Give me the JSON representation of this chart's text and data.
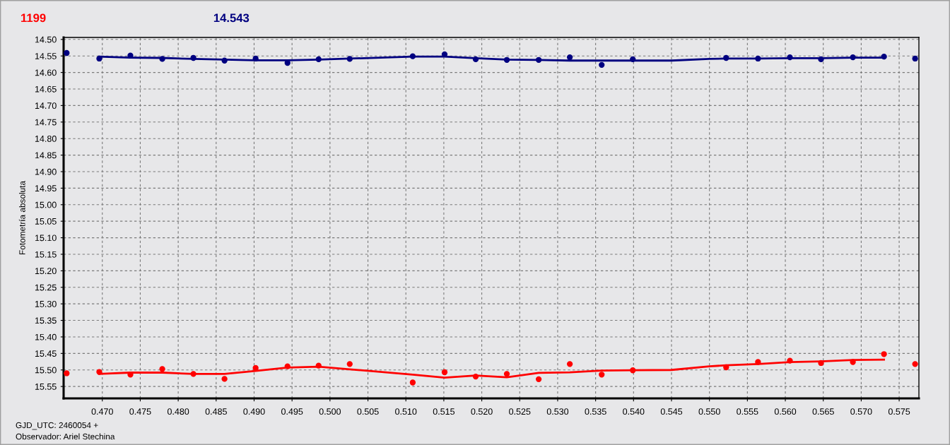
{
  "chart_data": {
    "type": "scatter",
    "xlabel": "GJD_UTC: 2460054 +",
    "ylabel": "Fotometría absoluta",
    "annotations": [
      "Observador: Ariel Stechina"
    ],
    "x": [
      0.4653,
      0.4696,
      0.4737,
      0.4779,
      0.482,
      0.4861,
      0.4902,
      0.4944,
      0.4985,
      0.5026,
      0.5109,
      0.5151,
      0.5192,
      0.5233,
      0.5275,
      0.5316,
      0.5358,
      0.5399,
      0.5522,
      0.5564,
      0.5606,
      0.5647,
      0.5689,
      0.573,
      0.5771
    ],
    "series": [
      {
        "name": "1199",
        "color": "#ff0000",
        "values": [
          15.51,
          15.506,
          15.514,
          15.497,
          15.512,
          15.527,
          15.494,
          15.489,
          15.487,
          15.482,
          15.538,
          15.507,
          15.52,
          15.512,
          15.528,
          15.482,
          15.514,
          15.501,
          15.492,
          15.476,
          15.472,
          15.479,
          15.476,
          15.452,
          15.482
        ]
      },
      {
        "name": "14.543",
        "color": "#000080",
        "values": [
          14.541,
          14.558,
          14.549,
          14.559,
          14.556,
          14.564,
          14.558,
          14.571,
          14.56,
          14.559,
          14.551,
          14.545,
          14.56,
          14.562,
          14.562,
          14.554,
          14.577,
          14.56,
          14.556,
          14.558,
          14.554,
          14.56,
          14.554,
          14.552,
          14.558
        ]
      },
      {
        "type": "line",
        "marker": "none",
        "color": "#ff0000",
        "x": [
          0.4696,
          0.4737,
          0.4779,
          0.482,
          0.4861,
          0.4902,
          0.4944,
          0.4985,
          0.5026,
          0.5109,
          0.5151,
          0.5192,
          0.5233,
          0.5275,
          0.5316,
          0.5358,
          0.5399,
          0.545,
          0.55,
          0.5522,
          0.5564,
          0.5606,
          0.5647,
          0.5689,
          0.573
        ],
        "values": [
          15.512,
          15.508,
          15.508,
          15.512,
          15.512,
          15.503,
          15.493,
          15.49,
          15.498,
          15.514,
          15.523,
          15.517,
          15.522,
          15.509,
          15.507,
          15.502,
          15.501,
          15.5,
          15.489,
          15.486,
          15.482,
          15.476,
          15.474,
          15.47,
          15.469
        ]
      },
      {
        "type": "line",
        "marker": "none",
        "color": "#000080",
        "x": [
          0.4696,
          0.4737,
          0.4779,
          0.482,
          0.4861,
          0.4902,
          0.4944,
          0.4985,
          0.5026,
          0.5109,
          0.5151,
          0.5192,
          0.5233,
          0.5275,
          0.5316,
          0.5358,
          0.5399,
          0.545,
          0.55,
          0.5522,
          0.5564,
          0.5606,
          0.5647,
          0.5689,
          0.573
        ],
        "values": [
          14.552,
          14.555,
          14.556,
          14.559,
          14.561,
          14.563,
          14.563,
          14.561,
          14.558,
          14.552,
          14.552,
          14.557,
          14.561,
          14.562,
          14.564,
          14.564,
          14.564,
          14.564,
          14.559,
          14.558,
          14.558,
          14.557,
          14.557,
          14.555,
          14.555
        ]
      }
    ],
    "xlim": [
      0.4649,
      0.5776
    ],
    "ylim": [
      15.586,
      14.494
    ],
    "xticks": [
      {
        "value": 0.47,
        "label": "0.470"
      },
      {
        "value": 0.475,
        "label": "0.475"
      },
      {
        "value": 0.48,
        "label": "0.480"
      },
      {
        "value": 0.485,
        "label": "0.485"
      },
      {
        "value": 0.49,
        "label": "0.490"
      },
      {
        "value": 0.495,
        "label": "0.495"
      },
      {
        "value": 0.5,
        "label": "0.500"
      },
      {
        "value": 0.505,
        "label": "0.505"
      },
      {
        "value": 0.51,
        "label": "0.510"
      },
      {
        "value": 0.515,
        "label": "0.515"
      },
      {
        "value": 0.52,
        "label": "0.520"
      },
      {
        "value": 0.525,
        "label": "0.525"
      },
      {
        "value": 0.53,
        "label": "0.530"
      },
      {
        "value": 0.535,
        "label": "0.535"
      },
      {
        "value": 0.54,
        "label": "0.540"
      },
      {
        "value": 0.545,
        "label": "0.545"
      },
      {
        "value": 0.55,
        "label": "0.550"
      },
      {
        "value": 0.555,
        "label": "0.555"
      },
      {
        "value": 0.56,
        "label": "0.560"
      },
      {
        "value": 0.565,
        "label": "0.565"
      },
      {
        "value": 0.57,
        "label": "0.570"
      },
      {
        "value": 0.575,
        "label": "0.575"
      }
    ],
    "yticks": [
      {
        "value": 14.5,
        "label": "14.50"
      },
      {
        "value": 14.55,
        "label": "14.55"
      },
      {
        "value": 14.6,
        "label": "14.60"
      },
      {
        "value": 14.65,
        "label": "14.65"
      },
      {
        "value": 14.7,
        "label": "14.70"
      },
      {
        "value": 14.75,
        "label": "14.75"
      },
      {
        "value": 14.8,
        "label": "14.80"
      },
      {
        "value": 14.85,
        "label": "14.85"
      },
      {
        "value": 14.9,
        "label": "14.90"
      },
      {
        "value": 14.95,
        "label": "14.95"
      },
      {
        "value": 15.0,
        "label": "15.00"
      },
      {
        "value": 15.05,
        "label": "15.05"
      },
      {
        "value": 15.1,
        "label": "15.10"
      },
      {
        "value": 15.15,
        "label": "15.15"
      },
      {
        "value": 15.2,
        "label": "15.20"
      },
      {
        "value": 15.25,
        "label": "15.25"
      },
      {
        "value": 15.3,
        "label": "15.30"
      },
      {
        "value": 15.35,
        "label": "15.35"
      },
      {
        "value": 15.4,
        "label": "15.40"
      },
      {
        "value": 15.45,
        "label": "15.45"
      },
      {
        "value": 15.5,
        "label": "15.50"
      },
      {
        "value": 15.55,
        "label": "15.55"
      }
    ],
    "grid": true,
    "legend": "top left",
    "marker": "circle",
    "line_style": "solid"
  }
}
